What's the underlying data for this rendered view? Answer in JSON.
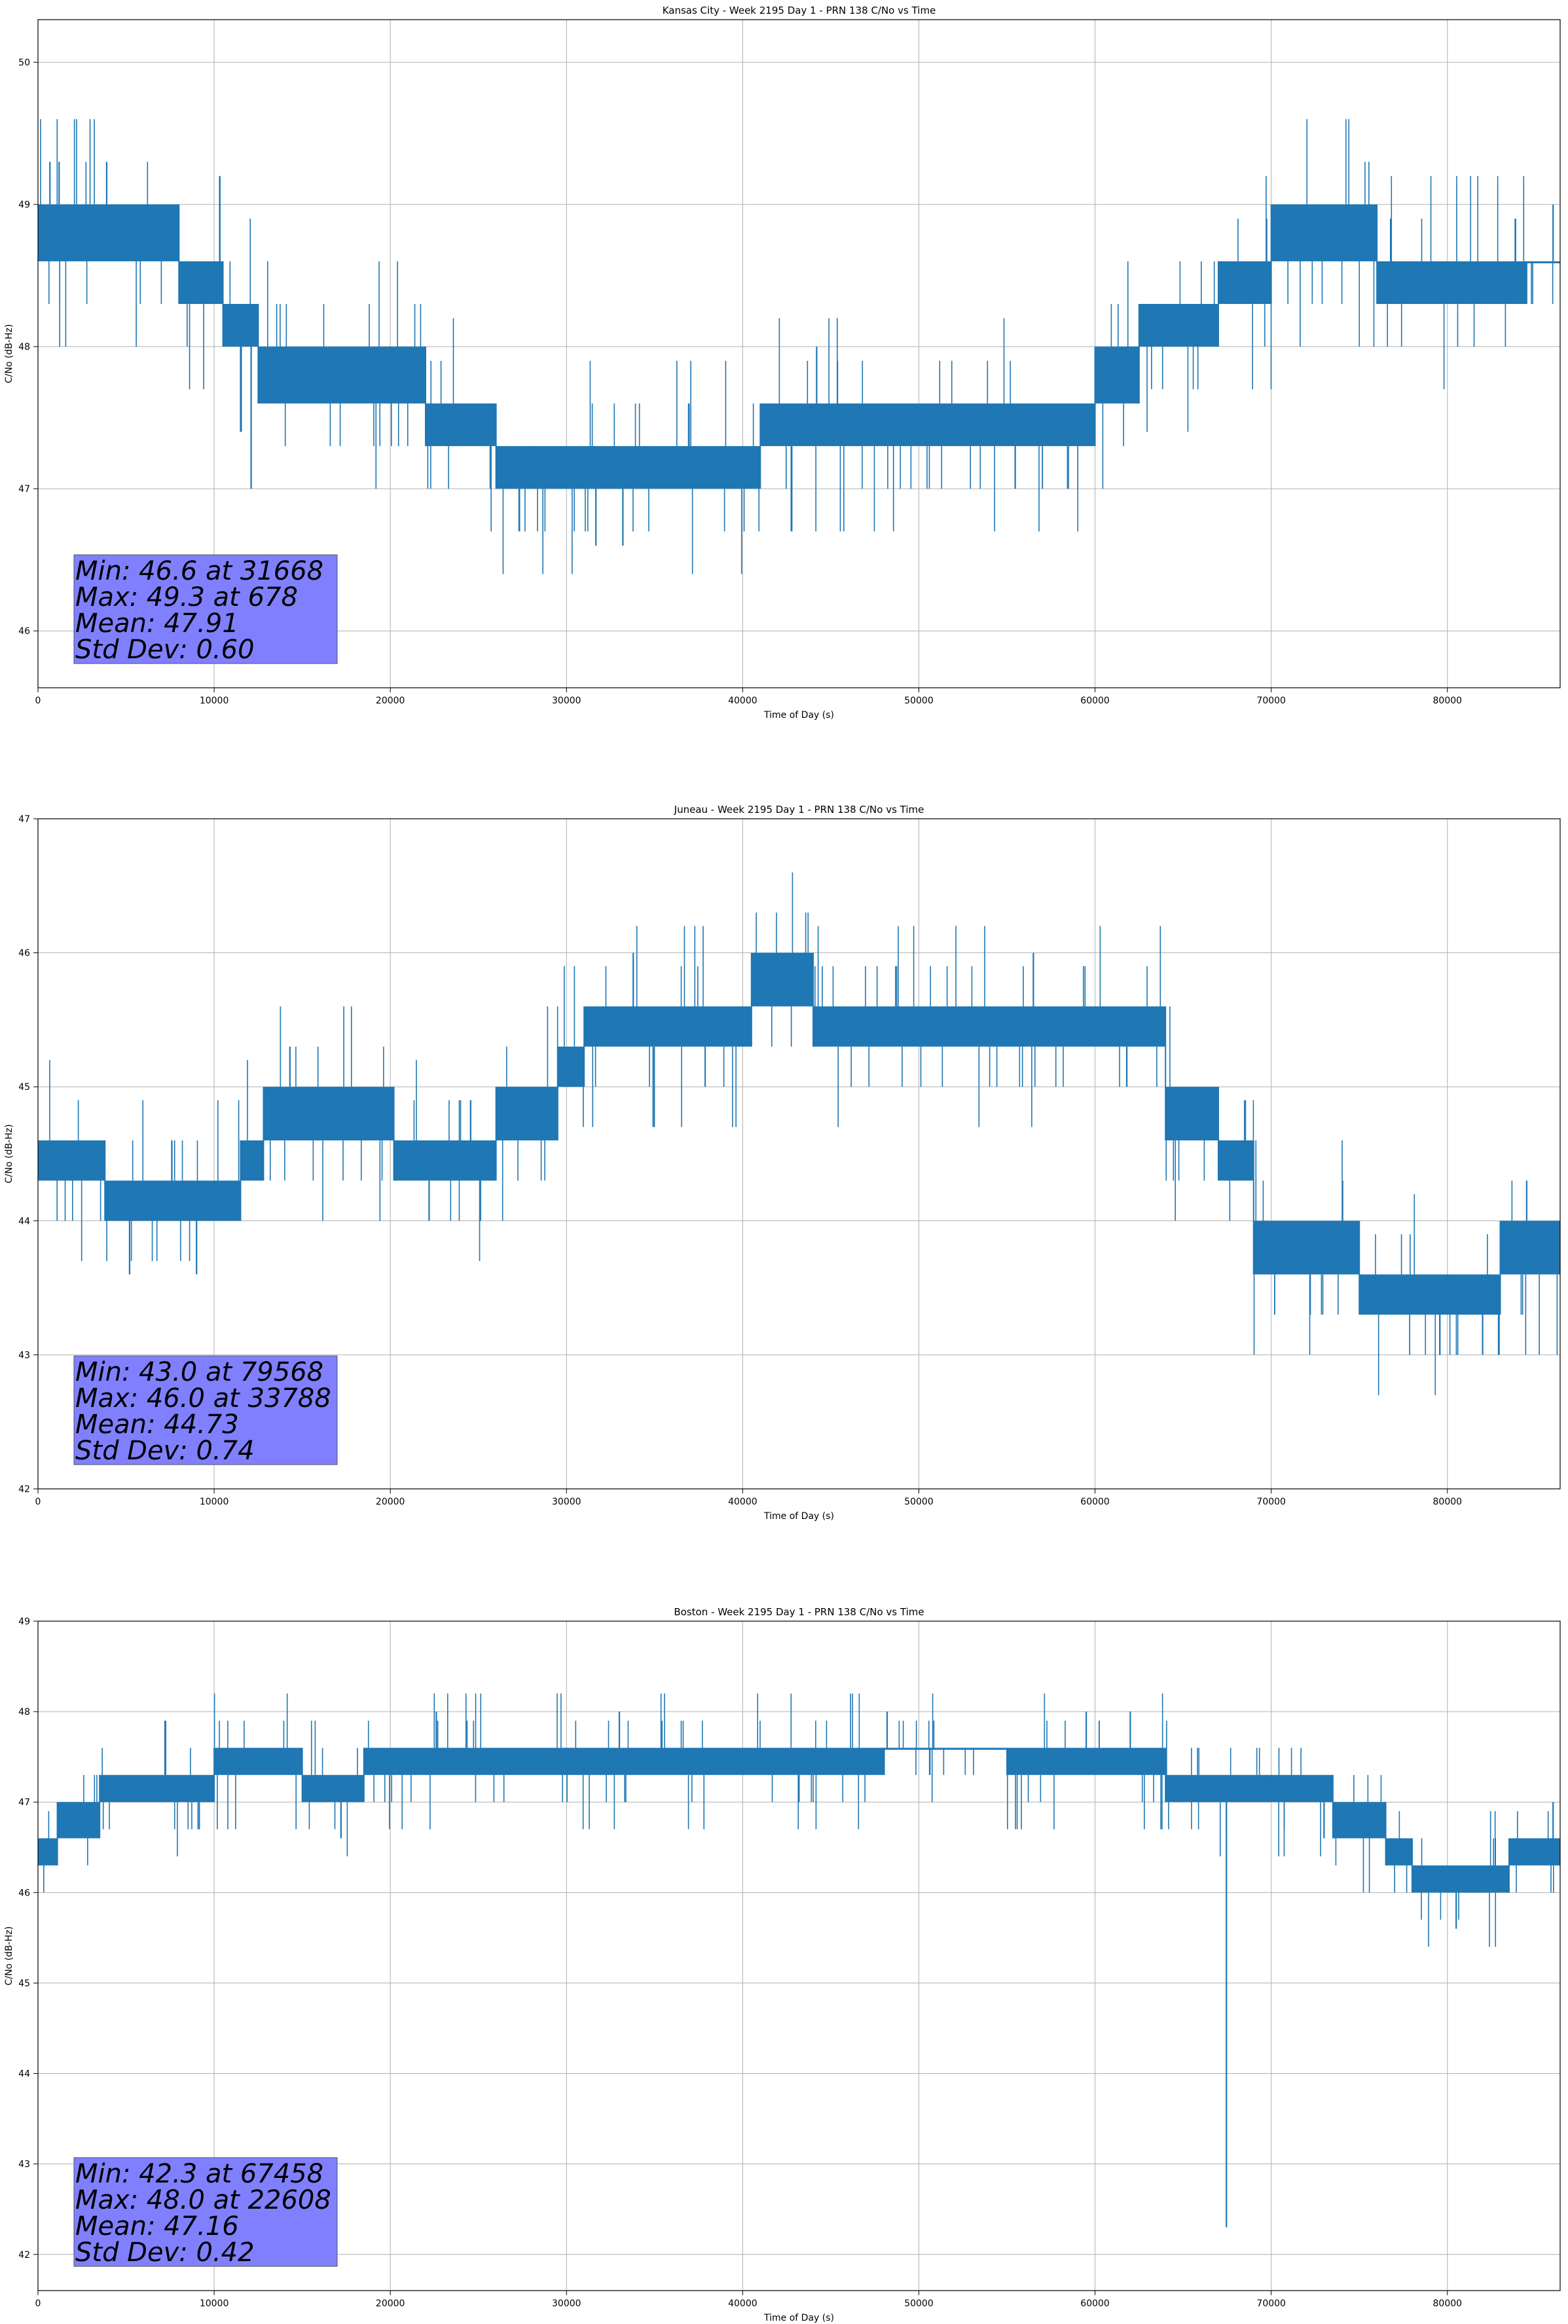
{
  "colors": {
    "series": "#1f77b4",
    "grid": "#b0b0b0",
    "stats_box": "#8080ff"
  },
  "chart_data": [
    {
      "type": "line",
      "title": "Kansas City - Week 2195 Day 1 - PRN 138 C/No vs Time",
      "xlabel": "Time of Day (s)",
      "ylabel": "C/No (dB-Hz)",
      "xlim": [
        0,
        86400
      ],
      "ylim": [
        45.6,
        50.3
      ],
      "xticks": [
        0,
        10000,
        20000,
        30000,
        40000,
        50000,
        60000,
        70000,
        80000
      ],
      "yticks": [
        46,
        47,
        48,
        49,
        50
      ],
      "grid": true,
      "series": [
        {
          "band": [
            [
              0,
              48.6,
              49.0
            ],
            [
              8000,
              48.3,
              48.6
            ],
            [
              10500,
              48.0,
              48.3
            ],
            [
              12500,
              47.6,
              48.0
            ],
            [
              22000,
              47.3,
              47.6
            ],
            [
              26000,
              47.0,
              47.3
            ],
            [
              28000,
              47.0,
              47.3
            ],
            [
              37000,
              47.0,
              47.3
            ],
            [
              41000,
              47.3,
              47.6
            ],
            [
              48500,
              47.3,
              47.6
            ],
            [
              54000,
              47.3,
              47.6
            ],
            [
              60000,
              47.6,
              48.0
            ],
            [
              62500,
              48.0,
              48.3
            ],
            [
              67000,
              48.3,
              48.6
            ],
            [
              70000,
              48.6,
              49.0
            ],
            [
              76000,
              48.3,
              48.6
            ],
            [
              84500,
              48.6,
              48.6
            ],
            [
              86400,
              48.6,
              48.6
            ]
          ],
          "spikes": [
            [
              678,
              49.3
            ],
            [
              1200,
              49.3
            ],
            [
              3900,
              49.3
            ],
            [
              12100,
              47.0
            ],
            [
              31668,
              46.6
            ],
            [
              33200,
              46.6
            ],
            [
              44200,
              48.0
            ],
            [
              72800,
              49.0
            ],
            [
              86000,
              49.0
            ]
          ]
        }
      ],
      "stats": [
        "Min: 46.6 at 31668",
        "Max: 49.3 at 678",
        "Mean: 47.91",
        "Std Dev: 0.60"
      ],
      "stats_position": "bottom-left"
    },
    {
      "type": "line",
      "title": "Juneau - Week 2195 Day 1 - PRN 138 C/No vs Time",
      "xlabel": "Time of Day (s)",
      "ylabel": "C/No (dB-Hz)",
      "xlim": [
        0,
        86400
      ],
      "ylim": [
        42,
        47
      ],
      "xticks": [
        0,
        10000,
        20000,
        30000,
        40000,
        50000,
        60000,
        70000,
        80000
      ],
      "yticks": [
        42,
        43,
        44,
        45,
        46,
        47
      ],
      "grid": true,
      "series": [
        {
          "band": [
            [
              0,
              44.3,
              44.6
            ],
            [
              3800,
              44.0,
              44.3
            ],
            [
              6500,
              44.0,
              44.3
            ],
            [
              11500,
              44.3,
              44.6
            ],
            [
              12800,
              44.6,
              45.0
            ],
            [
              20200,
              44.3,
              44.6
            ],
            [
              26000,
              44.6,
              45.0
            ],
            [
              29500,
              45.0,
              45.3
            ],
            [
              31000,
              45.3,
              45.6
            ],
            [
              40500,
              45.6,
              46.0
            ],
            [
              44000,
              45.3,
              45.6
            ],
            [
              64000,
              44.6,
              45.0
            ],
            [
              67000,
              44.3,
              44.6
            ],
            [
              69000,
              43.6,
              44.0
            ],
            [
              75000,
              43.3,
              43.6
            ],
            [
              80000,
              43.3,
              43.6
            ],
            [
              83000,
              43.6,
              44.0
            ],
            [
              86400,
              43.6,
              44.0
            ]
          ],
          "spikes": [
            [
              5200,
              43.6
            ],
            [
              9000,
              43.6
            ],
            [
              14300,
              45.3
            ],
            [
              22200,
              44.0
            ],
            [
              33788,
              46.0
            ],
            [
              42000,
              46.0
            ],
            [
              56500,
              46.0
            ],
            [
              79568,
              43.0
            ],
            [
              82000,
              43.0
            ],
            [
              84500,
              44.3
            ]
          ]
        }
      ],
      "stats": [
        "Min: 43.0 at 79568",
        "Max: 46.0 at 33788",
        "Mean: 44.73",
        "Std Dev: 0.74"
      ],
      "stats_position": "bottom-left"
    },
    {
      "type": "line",
      "title": "Boston - Week 2195 Day 1 - PRN 138 C/No vs Time",
      "xlabel": "Time of Day (s)",
      "ylabel": "C/No (dB-Hz)",
      "xlim": [
        0,
        86400
      ],
      "ylim": [
        41.6,
        49.0
      ],
      "xticks": [
        0,
        10000,
        20000,
        30000,
        40000,
        50000,
        60000,
        70000,
        80000
      ],
      "yticks": [
        42,
        43,
        44,
        45,
        46,
        47,
        48,
        49
      ],
      "grid": true,
      "series": [
        {
          "band": [
            [
              0,
              46.3,
              46.6
            ],
            [
              1100,
              46.6,
              47.0
            ],
            [
              3500,
              47.0,
              47.3
            ],
            [
              10000,
              47.3,
              47.6
            ],
            [
              15000,
              47.0,
              47.3
            ],
            [
              18500,
              47.3,
              47.6
            ],
            [
              30000,
              47.3,
              47.6
            ],
            [
              48000,
              47.6,
              47.6
            ],
            [
              55000,
              47.3,
              47.6
            ],
            [
              64000,
              47.0,
              47.3
            ],
            [
              70000,
              47.0,
              47.3
            ],
            [
              73500,
              46.6,
              47.0
            ],
            [
              76500,
              46.3,
              46.6
            ],
            [
              78000,
              46.0,
              46.3
            ],
            [
              83500,
              46.3,
              46.6
            ],
            [
              86400,
              46.3,
              46.6
            ]
          ],
          "spikes": [
            [
              17200,
              46.6
            ],
            [
              22608,
              48.0
            ],
            [
              33000,
              48.0
            ],
            [
              48200,
              48.0
            ],
            [
              59500,
              48.0
            ],
            [
              62000,
              48.0
            ],
            [
              67458,
              42.3
            ],
            [
              73000,
              46.6
            ],
            [
              80500,
              45.6
            ],
            [
              86000,
              47.0
            ]
          ]
        }
      ],
      "stats": [
        "Min: 42.3 at 67458",
        "Max: 48.0 at 22608",
        "Mean: 47.16",
        "Std Dev: 0.42"
      ],
      "stats_position": "bottom-left"
    }
  ]
}
